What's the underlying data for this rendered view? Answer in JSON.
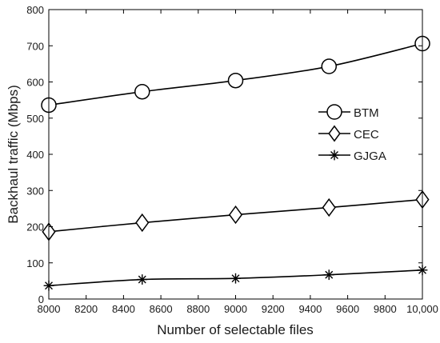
{
  "chart_data": {
    "type": "line",
    "xlabel": "Number of selectable files",
    "ylabel": "Backhaul traffic (Mbps)",
    "x": [
      8000,
      8500,
      9000,
      9500,
      10000
    ],
    "xlim": [
      8000,
      10000
    ],
    "ylim": [
      0,
      800
    ],
    "xticks": [
      8000,
      8200,
      8400,
      8600,
      8800,
      9000,
      9200,
      9400,
      9600,
      9800,
      10000
    ],
    "xtick_labels": [
      "8000",
      "8200",
      "8400",
      "8600",
      "8800",
      "9000",
      "9200",
      "9400",
      "9600",
      "9800",
      "10,000"
    ],
    "yticks": [
      0,
      100,
      200,
      300,
      400,
      500,
      600,
      700,
      800
    ],
    "ytick_labels": [
      "0",
      "100",
      "200",
      "300",
      "400",
      "500",
      "600",
      "700",
      "800"
    ],
    "grid": false,
    "legend_position": "right",
    "series": [
      {
        "name": "BTM",
        "marker": "circle",
        "color": "#000000",
        "values": [
          536,
          573,
          604,
          643,
          706
        ]
      },
      {
        "name": "CEC",
        "marker": "diamond",
        "color": "#000000",
        "values": [
          186,
          211,
          233,
          253,
          275
        ]
      },
      {
        "name": "GJGA",
        "marker": "asterisk",
        "color": "#000000",
        "values": [
          37,
          54,
          57,
          67,
          80
        ]
      }
    ]
  }
}
